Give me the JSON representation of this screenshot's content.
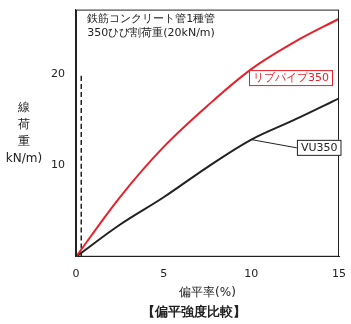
{
  "chart_data": {
    "type": "line",
    "title": "【偏平強度比較】",
    "x_label": "偏平率(%)",
    "y_label": [
      "線",
      "荷",
      "重",
      "kN/m)"
    ],
    "xlim": [
      0,
      15
    ],
    "xticks": [
      0,
      5,
      10,
      15
    ],
    "ylim": [
      0,
      27
    ],
    "yticks": [
      10,
      20
    ],
    "grid": false,
    "series": [
      {
        "name": "リブパイプ350",
        "color": "#e8202a",
        "x": [
          0,
          2.5,
          5,
          7.5,
          10,
          12.5,
          15
        ],
        "values": [
          0,
          6.5,
          12,
          16.5,
          20.5,
          23.5,
          26
        ]
      },
      {
        "name": "VU350",
        "color": "#222222",
        "x": [
          0,
          2.5,
          5,
          7.5,
          10,
          12.5,
          15
        ],
        "values": [
          0,
          3.5,
          6.5,
          9.8,
          12.8,
          15,
          17.3
        ]
      },
      {
        "name": [
          "鉄筋コンクリート管1種管",
          "350ひび割荷重(20kN/m)"
        ],
        "color": "#222222",
        "line_style": "dashed",
        "x": [
          0.3,
          0.3
        ],
        "values": [
          0,
          20
        ]
      }
    ]
  }
}
